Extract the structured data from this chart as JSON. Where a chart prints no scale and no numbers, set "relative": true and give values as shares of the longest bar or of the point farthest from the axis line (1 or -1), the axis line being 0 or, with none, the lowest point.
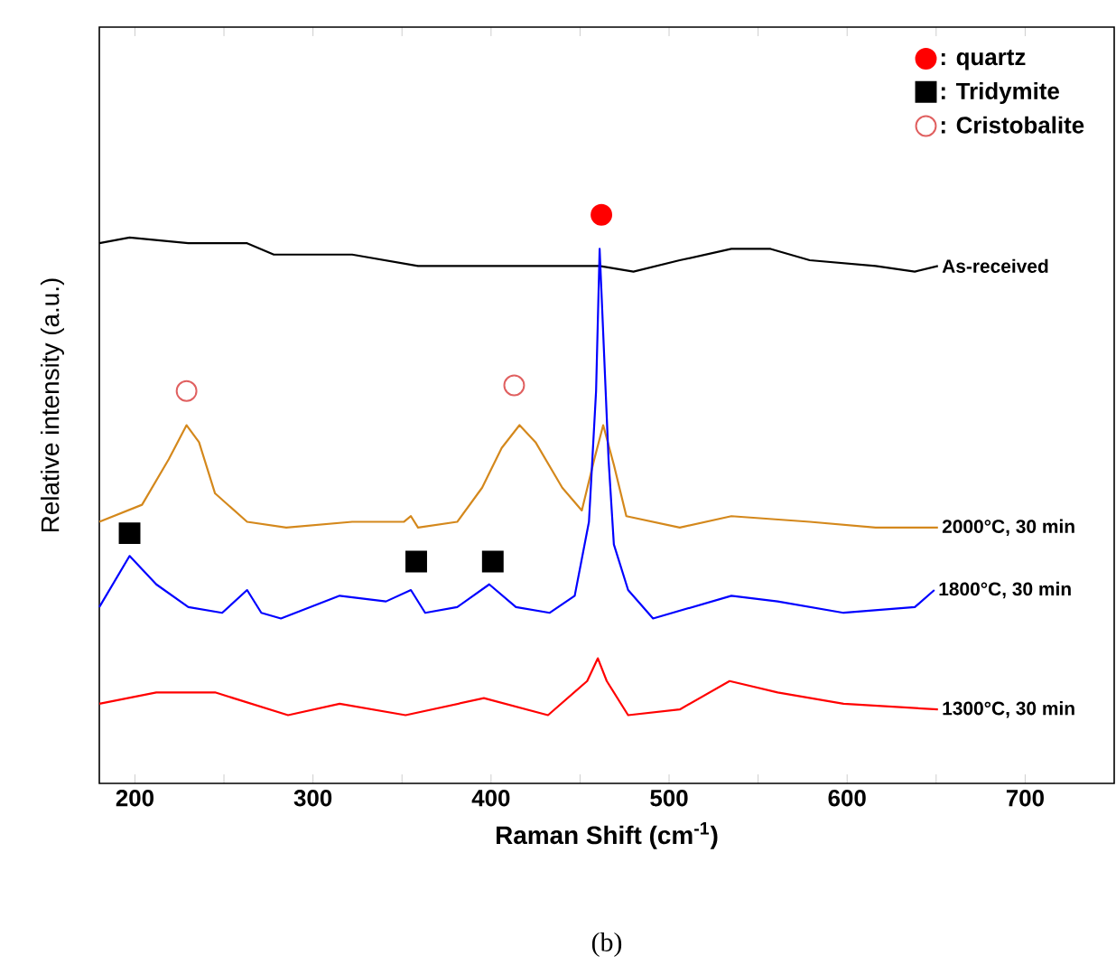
{
  "chart_data": {
    "type": "line",
    "xlabel": "Raman Shift (cm$^{-1}$)",
    "ylabel": "Relative intensity (a.u.)",
    "annotations": [
      "(b)"
    ],
    "relative": true,
    "xlim": [
      180,
      750
    ],
    "xticks": [
      200,
      {
        "value": 250,
        "label": null
      },
      300,
      {
        "value": 350,
        "label": null
      },
      400,
      {
        "value": 450,
        "label": null
      },
      500,
      {
        "value": 550,
        "label": null
      },
      600,
      {
        "value": 650,
        "label": null
      },
      700
    ],
    "grid": false,
    "legend": "top right",
    "line_style": "solid",
    "marker": "none",
    "series": [
      {
        "name": "As-received",
        "color": "#000000",
        "x": [
          180,
          197,
          230,
          263,
          278,
          322,
          359,
          395,
          432,
          461,
          480,
          506,
          535,
          557,
          579,
          616,
          638,
          651
        ],
        "values": [
          0.95,
          0.96,
          0.95,
          0.95,
          0.93,
          0.93,
          0.91,
          0.91,
          0.91,
          0.91,
          0.9,
          0.92,
          0.94,
          0.94,
          0.92,
          0.91,
          0.9,
          0.91
        ]
      },
      {
        "name": "2000°C, 30 min",
        "color": "#d4881c",
        "x": [
          180,
          204,
          219,
          229,
          236,
          245,
          263,
          285,
          322,
          351,
          355,
          359,
          381,
          395,
          406,
          416,
          425,
          440,
          451,
          458,
          463,
          469,
          476,
          506,
          535,
          579,
          616,
          651
        ],
        "values": [
          0.46,
          0.49,
          0.57,
          0.63,
          0.6,
          0.51,
          0.46,
          0.45,
          0.46,
          0.46,
          0.47,
          0.45,
          0.46,
          0.52,
          0.59,
          0.63,
          0.6,
          0.52,
          0.48,
          0.57,
          0.63,
          0.56,
          0.47,
          0.45,
          0.47,
          0.46,
          0.45,
          0.45
        ]
      },
      {
        "name": "1800°C, 30 min",
        "color": "#0000ff",
        "x": [
          180,
          197,
          212,
          230,
          249,
          263,
          271,
          282,
          315,
          341,
          355,
          363,
          381,
          399,
          414,
          433,
          447,
          455,
          459,
          461,
          466,
          469,
          477,
          491,
          535,
          561,
          598,
          638,
          649
        ],
        "values": [
          0.31,
          0.4,
          0.35,
          0.31,
          0.3,
          0.34,
          0.3,
          0.29,
          0.33,
          0.32,
          0.34,
          0.3,
          0.31,
          0.35,
          0.31,
          0.3,
          0.33,
          0.46,
          0.69,
          0.94,
          0.57,
          0.42,
          0.34,
          0.29,
          0.33,
          0.32,
          0.3,
          0.31,
          0.34
        ]
      },
      {
        "name": "1300°C, 30 min",
        "color": "#ff0000",
        "x": [
          180,
          212,
          245,
          286,
          315,
          352,
          396,
          432,
          454,
          460,
          465,
          477,
          506,
          534,
          561,
          598,
          651
        ],
        "values": [
          0.14,
          0.16,
          0.16,
          0.12,
          0.14,
          0.12,
          0.15,
          0.12,
          0.18,
          0.22,
          0.18,
          0.12,
          0.13,
          0.18,
          0.16,
          0.14,
          0.13
        ]
      },
      {
        "name": ": quartz",
        "type": "scatter",
        "marker": "circle",
        "color": "#ff0000",
        "x": [
          462
        ],
        "values": [
          1.0
        ]
      },
      {
        "name": ": Tridymite",
        "type": "scatter",
        "marker": "square",
        "color": "#000000",
        "x": [
          197,
          358,
          401
        ],
        "values": [
          0.44,
          0.39,
          0.39
        ]
      },
      {
        "name": ": Cristobalite",
        "type": "scatter",
        "marker": "circle open",
        "color": "#e06060",
        "x": [
          229,
          413
        ],
        "values": [
          0.69,
          0.7
        ]
      }
    ]
  }
}
